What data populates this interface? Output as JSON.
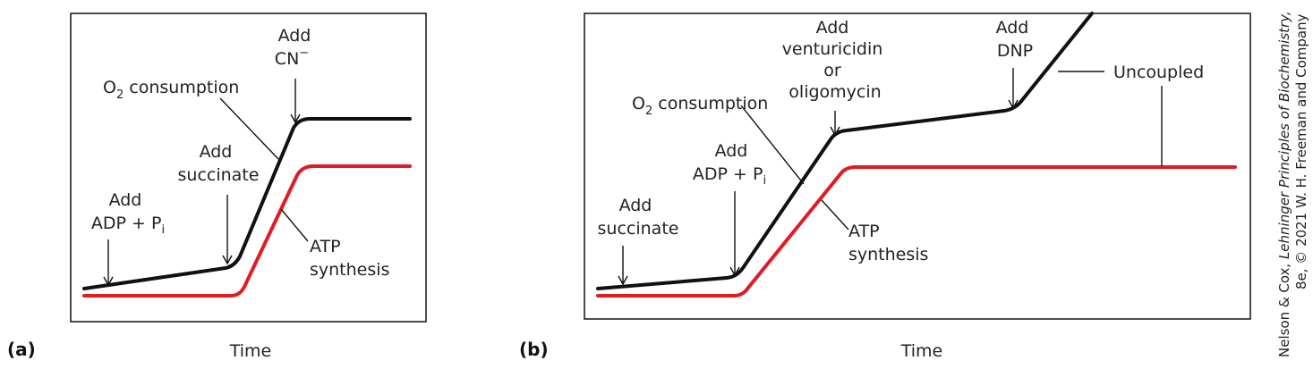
{
  "panels": [
    {
      "id": "a",
      "label": "(a)",
      "xlabel": "Time",
      "o2": "O",
      "o2_sub": "2",
      "o2_rest": " consumption",
      "add_adp_line1": "Add",
      "add_adp_line2": "ADP + P",
      "add_adp_sub": "i",
      "add_succ_line1": "Add",
      "add_succ_line2": "succinate",
      "add_cn_line1": "Add",
      "add_cn_line2": "CN",
      "add_cn_sup": "−",
      "atp_line1": "ATP",
      "atp_line2": "synthesis"
    },
    {
      "id": "b",
      "label": "(b)",
      "xlabel": "Time",
      "o2": "O",
      "o2_sub": "2",
      "o2_rest": " consumption",
      "add_succ_line1": "Add",
      "add_succ_line2": "succinate",
      "add_adp_line1": "Add",
      "add_adp_line2": "ADP + P",
      "add_adp_sub": "i",
      "vent_line1": "Add",
      "vent_line2": "venturicidin",
      "vent_line3": "or",
      "vent_line4": "oligomycin",
      "dnp_line1": "Add",
      "dnp_line2": "DNP",
      "uncoupled": "Uncoupled",
      "atp_line1": "ATP",
      "atp_line2": "synthesis"
    }
  ],
  "credit": {
    "line1_a": "Nelson & Cox, ",
    "line1_b": "Lehninger Principles of Biochemistry,",
    "line2": "8e, © 2021 W. H. Freeman and Company"
  },
  "colors": {
    "o2_curve": "#111111",
    "atp_curve": "#e01b24"
  }
}
